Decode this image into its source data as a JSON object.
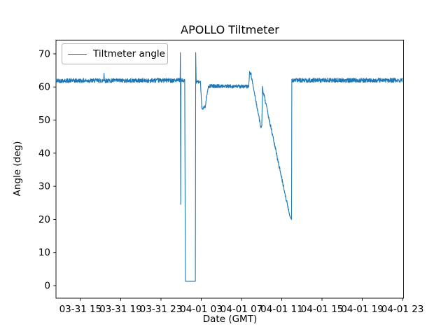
{
  "figure": {
    "title": "APOLLO Tiltmeter"
  },
  "axes": {
    "xlabel": "Date (GMT)",
    "ylabel": "Angle (deg)",
    "x_ticks": [
      {
        "t": 15,
        "label": "03-31 15"
      },
      {
        "t": 19,
        "label": "03-31 19"
      },
      {
        "t": 23,
        "label": "03-31 23"
      },
      {
        "t": 27,
        "label": "04-01 03"
      },
      {
        "t": 31,
        "label": "04-01 07"
      },
      {
        "t": 35,
        "label": "04-01 11"
      },
      {
        "t": 39,
        "label": "04-01 15"
      },
      {
        "t": 43,
        "label": "04-01 19"
      },
      {
        "t": 47,
        "label": "04-01 23"
      }
    ],
    "y_ticks": [
      {
        "v": 0,
        "label": "0"
      },
      {
        "v": 10,
        "label": "10"
      },
      {
        "v": 20,
        "label": "20"
      },
      {
        "v": 30,
        "label": "30"
      },
      {
        "v": 40,
        "label": "40"
      },
      {
        "v": 50,
        "label": "50"
      },
      {
        "v": 60,
        "label": "60"
      },
      {
        "v": 70,
        "label": "70"
      }
    ]
  },
  "legend": {
    "label": "Tiltmeter angle"
  },
  "chart_data": {
    "type": "line",
    "title": "APOLLO Tiltmeter",
    "xlabel": "Date (GMT)",
    "ylabel": "Angle (deg)",
    "x_unit": "hours since 03-31 00:00 GMT",
    "xlim": [
      12.57,
      47.1
    ],
    "ylim": [
      -3.8,
      74.15
    ],
    "grid": false,
    "legend_position": "upper left",
    "series": [
      {
        "name": "Tiltmeter angle",
        "color": "#1f77b4",
        "segments_format": [
          "t_start_h",
          "t_end_h",
          "value_start_deg",
          "value_end_deg",
          "noise_deg",
          "n_points"
        ],
        "segments": [
          [
            12.57,
            17.3,
            61.9,
            61.9,
            0.65,
            240
          ],
          [
            17.3,
            17.34,
            61.9,
            64.2,
            0.1,
            3
          ],
          [
            17.34,
            17.38,
            64.2,
            61.9,
            0.1,
            3
          ],
          [
            17.38,
            24.9,
            61.9,
            62.0,
            0.65,
            380
          ],
          [
            24.9,
            24.93,
            62.0,
            70.4,
            0.0,
            2
          ],
          [
            24.93,
            24.96,
            70.4,
            24.5,
            0.0,
            2
          ],
          [
            24.96,
            24.99,
            24.5,
            62.0,
            0.0,
            2
          ],
          [
            24.99,
            25.36,
            62.0,
            61.8,
            0.6,
            20
          ],
          [
            25.36,
            25.4,
            61.8,
            23.0,
            0.0,
            3
          ],
          [
            25.4,
            25.43,
            23.0,
            1.3,
            0.0,
            2
          ],
          [
            25.43,
            26.42,
            1.3,
            1.3,
            0.05,
            40
          ],
          [
            26.42,
            26.45,
            1.3,
            70.4,
            0.0,
            2
          ],
          [
            26.45,
            26.5,
            70.4,
            61.5,
            0.0,
            3
          ],
          [
            26.5,
            26.92,
            61.5,
            61.5,
            0.45,
            22
          ],
          [
            26.92,
            27.06,
            61.5,
            53.6,
            0.3,
            8
          ],
          [
            27.06,
            27.4,
            53.6,
            53.9,
            0.5,
            18
          ],
          [
            27.4,
            27.52,
            53.9,
            56.8,
            0.4,
            8
          ],
          [
            27.52,
            27.7,
            56.8,
            59.9,
            0.3,
            10
          ],
          [
            27.7,
            31.72,
            60.3,
            60.1,
            0.55,
            210
          ],
          [
            31.72,
            31.8,
            60.1,
            64.3,
            0.2,
            5
          ],
          [
            31.8,
            31.97,
            64.3,
            63.8,
            0.4,
            10
          ],
          [
            31.97,
            32.92,
            63.3,
            47.8,
            0.5,
            50
          ],
          [
            32.92,
            33.02,
            47.8,
            48.2,
            0.3,
            6
          ],
          [
            33.02,
            33.08,
            48.2,
            59.7,
            0.0,
            3
          ],
          [
            33.08,
            35.78,
            59.7,
            21.3,
            0.6,
            140
          ],
          [
            35.78,
            35.97,
            21.3,
            20.1,
            0.35,
            10
          ],
          [
            35.97,
            36.0,
            20.1,
            62.3,
            0.0,
            2
          ],
          [
            36.0,
            47.0,
            62.0,
            62.0,
            0.65,
            560
          ]
        ]
      }
    ]
  },
  "style": {
    "line_color": "#1f77b4",
    "spine_color": "#000000",
    "background": "#ffffff",
    "legend_border": "#b0b0b0"
  }
}
